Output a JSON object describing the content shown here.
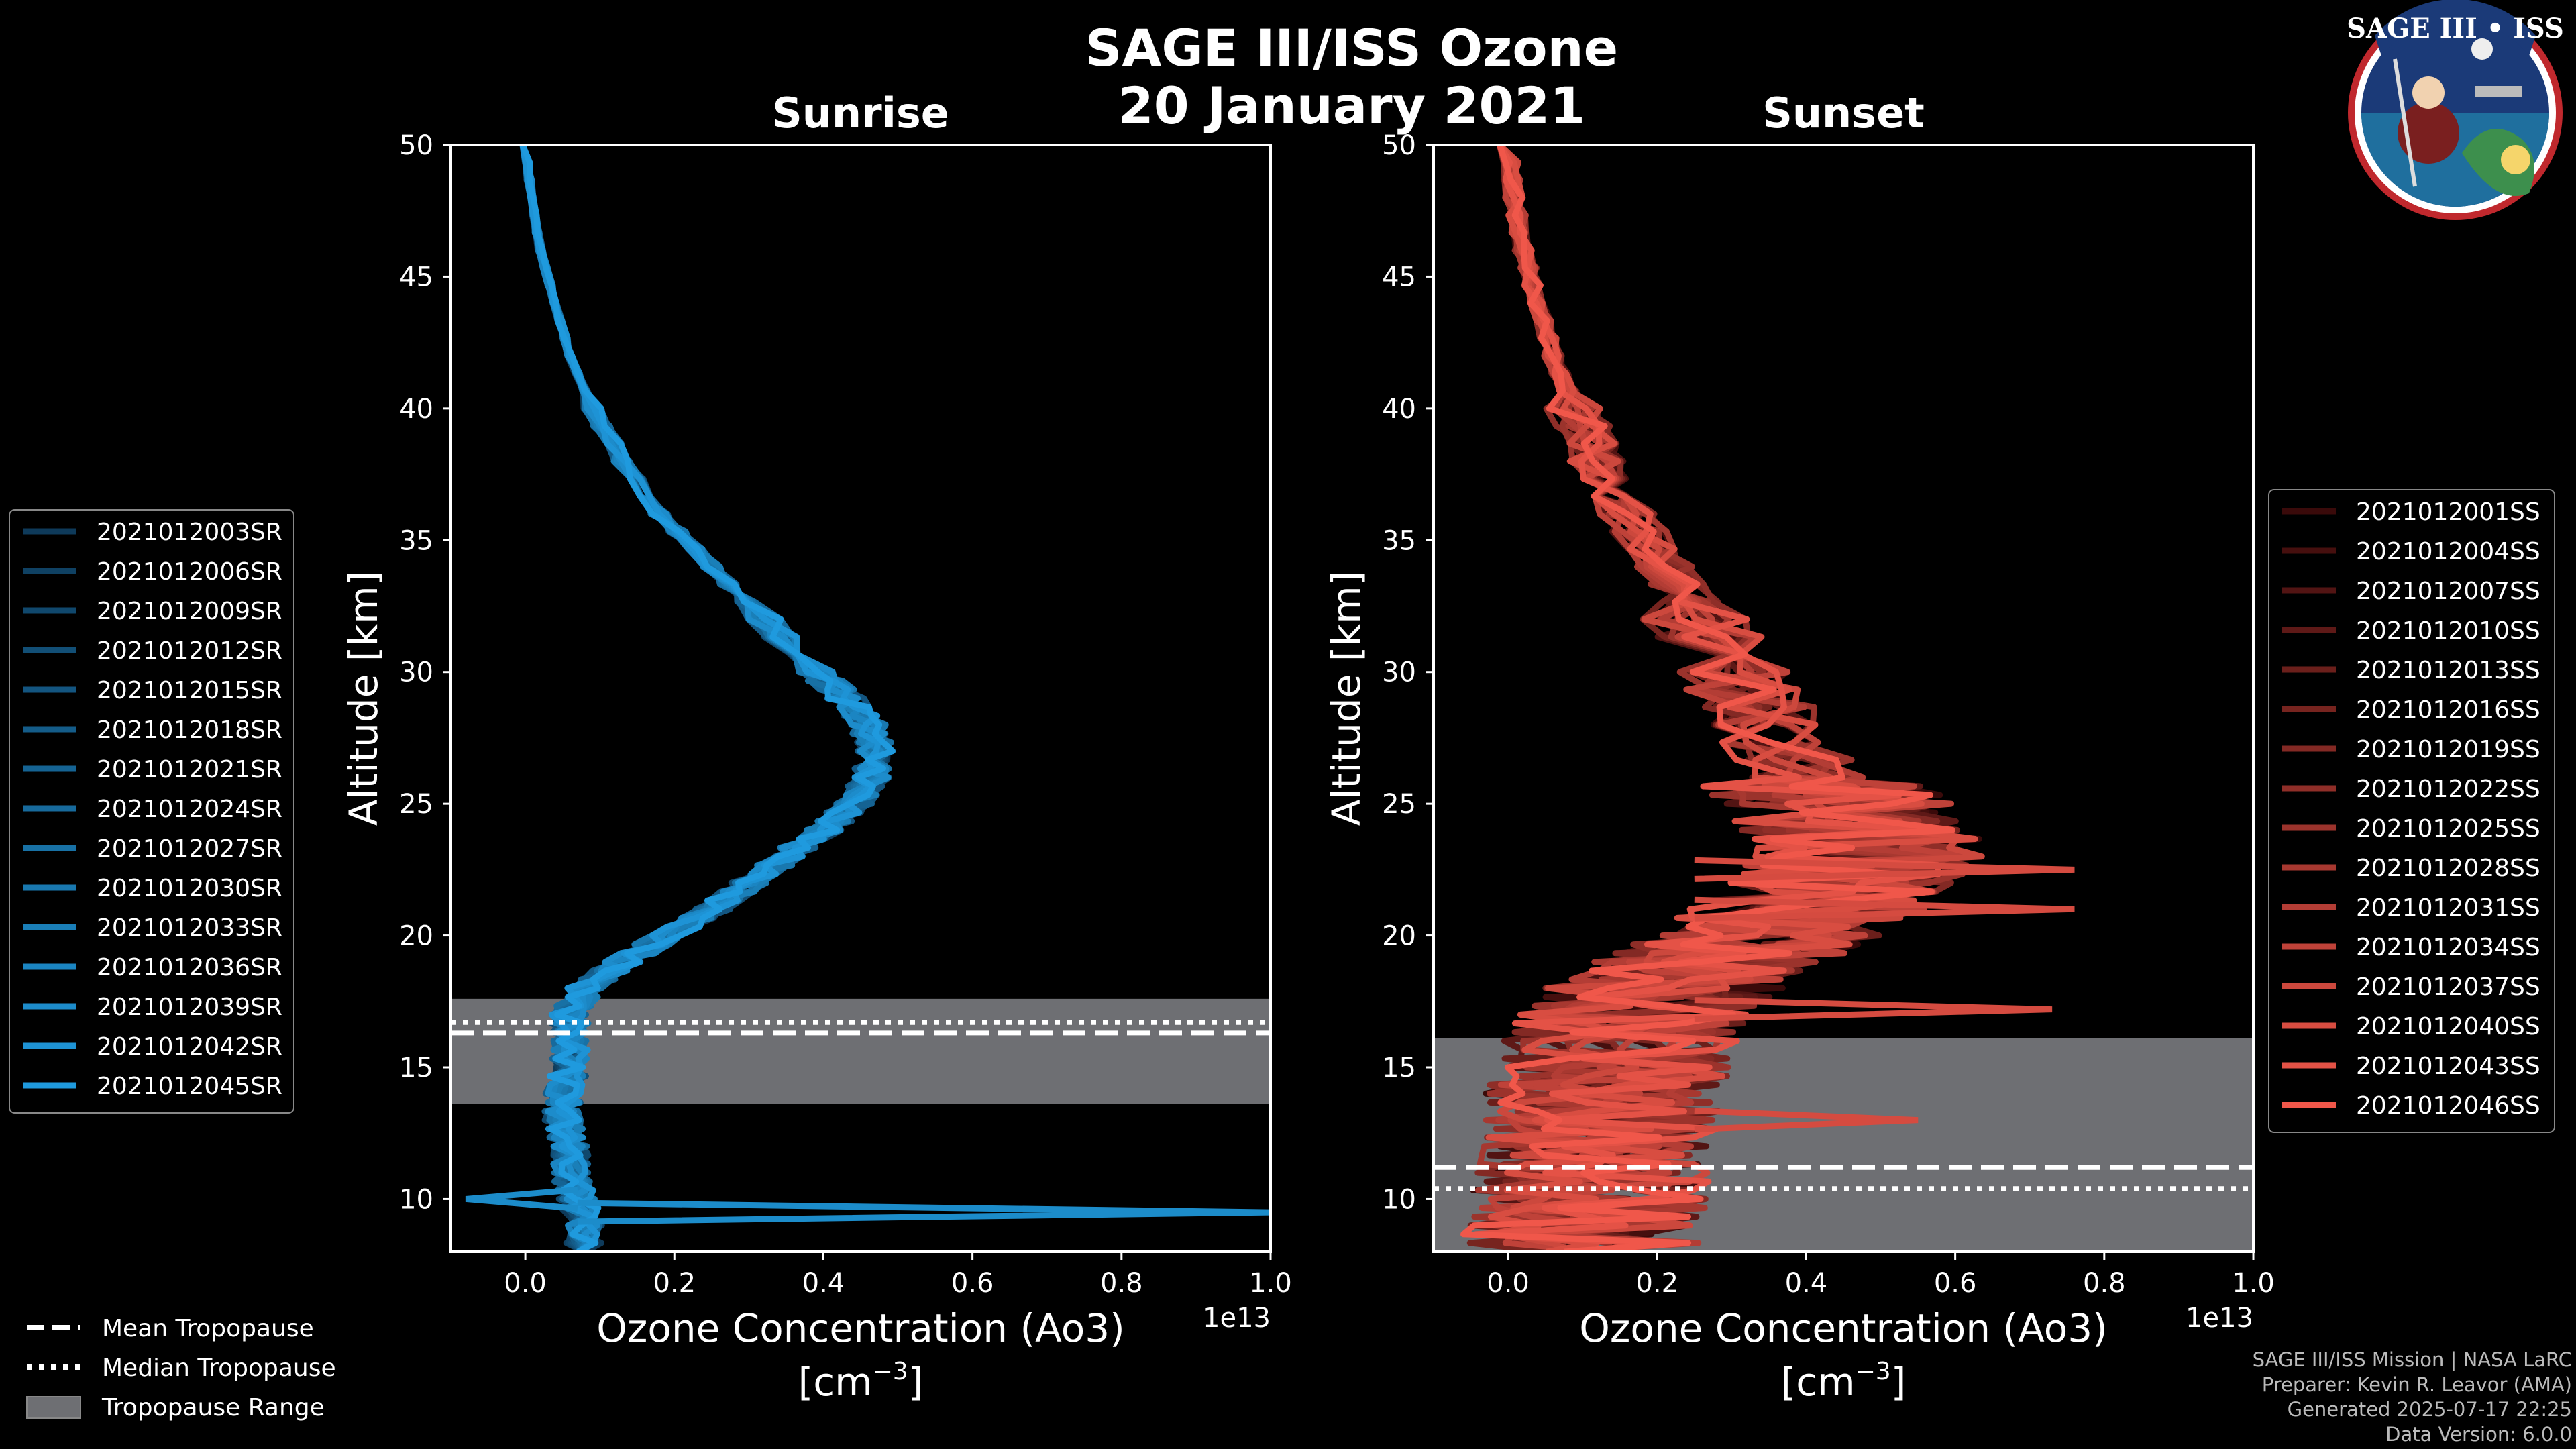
{
  "figure": {
    "title_line1": "SAGE III/ISS Ozone",
    "title_line2": "20 January 2021",
    "badge_text": "SAGE III • ISS",
    "credits": [
      "SAGE III/ISS Mission | NASA LaRC",
      "Preparer: Kevin R. Leavor (AMA)",
      "Generated 2025-07-17 22:25",
      "Data Version: 6.0.0"
    ],
    "bottom_legend": [
      "Mean Tropopause",
      "Median Tropopause",
      "Tropopause Range"
    ],
    "colors": {
      "sunrise": "#1f9ade",
      "sunset": "#f0574a",
      "tropo_range": "#6e6f73"
    }
  },
  "chart_data": [
    {
      "type": "line",
      "panel": "sunrise",
      "title": "Sunrise",
      "xlabel": "Ozone Concentration (Ao3)",
      "xlabel_units": "[cm",
      "xlabel_units_sup": "−3",
      "xlabel_units_close": "]",
      "ylabel": "Altitude [km]",
      "x_offset_label": "1e13",
      "xlim": [
        -0.1,
        1.0
      ],
      "ylim": [
        8,
        50
      ],
      "xticks": [
        0.0,
        0.2,
        0.4,
        0.6,
        0.8,
        1.0
      ],
      "xtick_labels": [
        "0.0",
        "0.2",
        "0.4",
        "0.6",
        "0.8",
        "1.0"
      ],
      "yticks": [
        10,
        15,
        20,
        25,
        30,
        35,
        40,
        45,
        50
      ],
      "ytick_labels": [
        "10",
        "15",
        "20",
        "25",
        "30",
        "35",
        "40",
        "45",
        "50"
      ],
      "tropopause": {
        "mean_km": 16.3,
        "median_km": 16.7,
        "range_km": [
          13.6,
          17.6
        ]
      },
      "legend": [
        "2021012003SR",
        "2021012006SR",
        "2021012009SR",
        "2021012012SR",
        "2021012015SR",
        "2021012018SR",
        "2021012021SR",
        "2021012024SR",
        "2021012027SR",
        "2021012030SR",
        "2021012033SR",
        "2021012036SR",
        "2021012039SR",
        "2021012042SR",
        "2021012045SR"
      ],
      "base_profile": {
        "altitude_km": [
          50,
          48,
          46,
          44,
          42,
          40,
          38,
          36,
          34,
          32,
          30,
          29,
          28,
          27,
          26,
          25,
          24,
          23,
          22,
          21,
          20,
          19,
          18,
          17,
          16,
          15,
          14,
          13,
          12,
          11,
          10,
          9,
          8
        ],
        "ozone_1e13": [
          0.0,
          0.008,
          0.02,
          0.04,
          0.06,
          0.09,
          0.13,
          0.18,
          0.25,
          0.32,
          0.39,
          0.43,
          0.46,
          0.47,
          0.465,
          0.44,
          0.4,
          0.35,
          0.3,
          0.25,
          0.19,
          0.13,
          0.08,
          0.06,
          0.06,
          0.06,
          0.05,
          0.05,
          0.06,
          0.06,
          0.07,
          0.08,
          0.08
        ]
      },
      "outlier_spikes": [
        {
          "altitude_km": 9.5,
          "ozone_1e13": 1.0
        },
        {
          "altitude_km": 10.0,
          "ozone_1e13": -0.08
        }
      ]
    },
    {
      "type": "line",
      "panel": "sunset",
      "title": "Sunset",
      "xlabel": "Ozone Concentration (Ao3)",
      "xlabel_units": "[cm",
      "xlabel_units_sup": "−3",
      "xlabel_units_close": "]",
      "ylabel": "Altitude [km]",
      "x_offset_label": "1e13",
      "xlim": [
        -0.1,
        1.0
      ],
      "ylim": [
        8,
        50
      ],
      "xticks": [
        0.0,
        0.2,
        0.4,
        0.6,
        0.8,
        1.0
      ],
      "xtick_labels": [
        "0.0",
        "0.2",
        "0.4",
        "0.6",
        "0.8",
        "1.0"
      ],
      "yticks": [
        10,
        15,
        20,
        25,
        30,
        35,
        40,
        45,
        50
      ],
      "ytick_labels": [
        "10",
        "15",
        "20",
        "25",
        "30",
        "35",
        "40",
        "45",
        "50"
      ],
      "tropopause": {
        "mean_km": 11.2,
        "median_km": 10.4,
        "range_km": [
          8,
          16.1
        ]
      },
      "legend": [
        "2021012001SS",
        "2021012004SS",
        "2021012007SS",
        "2021012010SS",
        "2021012013SS",
        "2021012016SS",
        "2021012019SS",
        "2021012022SS",
        "2021012025SS",
        "2021012028SS",
        "2021012031SS",
        "2021012034SS",
        "2021012037SS",
        "2021012040SS",
        "2021012043SS",
        "2021012046SS"
      ],
      "base_profile": {
        "altitude_km": [
          50,
          48,
          46,
          44,
          42,
          40,
          38,
          36,
          34,
          32,
          30,
          28,
          26,
          25,
          24,
          23,
          22,
          21,
          20,
          19,
          18,
          17,
          16,
          15,
          14,
          13,
          12,
          11,
          10,
          9,
          8
        ],
        "ozone_1e13": [
          0.0,
          0.008,
          0.02,
          0.04,
          0.06,
          0.09,
          0.12,
          0.16,
          0.21,
          0.26,
          0.3,
          0.35,
          0.4,
          0.44,
          0.47,
          0.48,
          0.45,
          0.4,
          0.34,
          0.27,
          0.21,
          0.17,
          0.15,
          0.14,
          0.13,
          0.12,
          0.12,
          0.11,
          0.11,
          0.1,
          0.1
        ]
      },
      "outlier_spikes": [
        {
          "altitude_km": 22.5,
          "ozone_1e13": 0.76
        },
        {
          "altitude_km": 21.0,
          "ozone_1e13": 0.76
        },
        {
          "altitude_km": 17.2,
          "ozone_1e13": 0.73
        },
        {
          "altitude_km": 13.0,
          "ozone_1e13": 0.55
        }
      ]
    }
  ]
}
